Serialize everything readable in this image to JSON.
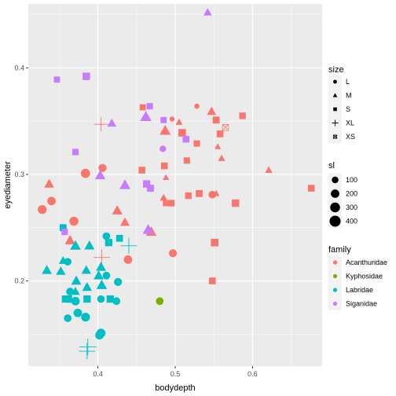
{
  "chart_data": {
    "type": "scatter",
    "xlabel": "bodydepth",
    "ylabel": "eyediameter",
    "xlim": [
      0.31,
      0.69
    ],
    "ylim": [
      0.12,
      0.46
    ],
    "x_ticks": [
      0.4,
      0.5,
      0.6
    ],
    "x_tick_labels": [
      "0.4",
      "0.5",
      "0.6"
    ],
    "y_ticks": [
      0.2,
      0.3,
      0.4
    ],
    "y_tick_labels": [
      "0.2",
      "0.3",
      "0.4"
    ],
    "grid": true,
    "legends": {
      "position": "right",
      "size": {
        "title": "size",
        "entries": [
          {
            "label": "L",
            "shape": "circle"
          },
          {
            "label": "M",
            "shape": "triangle"
          },
          {
            "label": "S",
            "shape": "square"
          },
          {
            "label": "XL",
            "shape": "plus"
          },
          {
            "label": "XS",
            "shape": "square-cross"
          }
        ]
      },
      "sl": {
        "title": "sl",
        "entries": [
          {
            "label": "100",
            "value": 100
          },
          {
            "label": "200",
            "value": 200
          },
          {
            "label": "300",
            "value": 300
          },
          {
            "label": "400",
            "value": 400
          }
        ]
      },
      "family": {
        "title": "family",
        "entries": [
          {
            "label": "Acanthuridae",
            "color": "#F8766D"
          },
          {
            "label": "Kyphosidae",
            "color": "#7CAE00"
          },
          {
            "label": "Labridae",
            "color": "#00BFC4"
          },
          {
            "label": "Siganidae",
            "color": "#C77CFF"
          }
        ]
      }
    },
    "colors": {
      "Acanthuridae": "#F8766D",
      "Kyphosidae": "#7CAE00",
      "Labridae": "#00BFC4",
      "Siganidae": "#C77CFF",
      "panel": "#EBEBEB",
      "grid_major": "#FFFFFF"
    },
    "points": [
      {
        "x": 0.542,
        "y": 0.452,
        "size": "M",
        "family": "Siganidae",
        "sl": 120
      },
      {
        "x": 0.347,
        "y": 0.389,
        "size": "S",
        "family": "Siganidae",
        "sl": 90
      },
      {
        "x": 0.385,
        "y": 0.392,
        "size": "S",
        "family": "Siganidae",
        "sl": 160
      },
      {
        "x": 0.467,
        "y": 0.364,
        "size": "S",
        "family": "Siganidae",
        "sl": 100
      },
      {
        "x": 0.458,
        "y": 0.363,
        "size": "S",
        "family": "Acanthuridae",
        "sl": 90
      },
      {
        "x": 0.528,
        "y": 0.364,
        "size": "L",
        "family": "Acanthuridae",
        "sl": 40
      },
      {
        "x": 0.547,
        "y": 0.359,
        "size": "M",
        "family": "Acanthuridae",
        "sl": 160
      },
      {
        "x": 0.587,
        "y": 0.355,
        "size": "S",
        "family": "Acanthuridae",
        "sl": 110
      },
      {
        "x": 0.462,
        "y": 0.354,
        "size": "M",
        "family": "Siganidae",
        "sl": 280
      },
      {
        "x": 0.485,
        "y": 0.351,
        "size": "S",
        "family": "Siganidae",
        "sl": 90
      },
      {
        "x": 0.496,
        "y": 0.352,
        "size": "L",
        "family": "Acanthuridae",
        "sl": 40
      },
      {
        "x": 0.553,
        "y": 0.351,
        "size": "S",
        "family": "Acanthuridae",
        "sl": 130
      },
      {
        "x": 0.505,
        "y": 0.349,
        "size": "M",
        "family": "Acanthuridae",
        "sl": 70
      },
      {
        "x": 0.404,
        "y": 0.347,
        "size": "XL",
        "family": "Acanthuridae",
        "sl": 220
      },
      {
        "x": 0.418,
        "y": 0.348,
        "size": "M",
        "family": "Siganidae",
        "sl": 150
      },
      {
        "x": 0.565,
        "y": 0.344,
        "size": "XS",
        "family": "Acanthuridae",
        "sl": 100
      },
      {
        "x": 0.487,
        "y": 0.341,
        "size": "M",
        "family": "Acanthuridae",
        "sl": 260
      },
      {
        "x": 0.509,
        "y": 0.339,
        "size": "S",
        "family": "Acanthuridae",
        "sl": 170
      },
      {
        "x": 0.558,
        "y": 0.338,
        "size": "S",
        "family": "Acanthuridae",
        "sl": 120
      },
      {
        "x": 0.514,
        "y": 0.333,
        "size": "S",
        "family": "Siganidae",
        "sl": 120
      },
      {
        "x": 0.528,
        "y": 0.329,
        "size": "S",
        "family": "Acanthuridae",
        "sl": 100
      },
      {
        "x": 0.484,
        "y": 0.324,
        "size": "L",
        "family": "Siganidae",
        "sl": 90
      },
      {
        "x": 0.555,
        "y": 0.326,
        "size": "M",
        "family": "Acanthuridae",
        "sl": 50
      },
      {
        "x": 0.371,
        "y": 0.321,
        "size": "S",
        "family": "Siganidae",
        "sl": 100
      },
      {
        "x": 0.515,
        "y": 0.313,
        "size": "S",
        "family": "Acanthuridae",
        "sl": 100
      },
      {
        "x": 0.56,
        "y": 0.315,
        "size": "M",
        "family": "Acanthuridae",
        "sl": 70
      },
      {
        "x": 0.486,
        "y": 0.308,
        "size": "S",
        "family": "Acanthuridae",
        "sl": 120
      },
      {
        "x": 0.406,
        "y": 0.306,
        "size": "L",
        "family": "Acanthuridae",
        "sl": 180
      },
      {
        "x": 0.621,
        "y": 0.304,
        "size": "M",
        "family": "Acanthuridae",
        "sl": 80
      },
      {
        "x": 0.457,
        "y": 0.304,
        "size": "S",
        "family": "Acanthuridae",
        "sl": 120
      },
      {
        "x": 0.384,
        "y": 0.301,
        "size": "L",
        "family": "Acanthuridae",
        "sl": 250
      },
      {
        "x": 0.403,
        "y": 0.299,
        "size": "M",
        "family": "Siganidae",
        "sl": 220
      },
      {
        "x": 0.488,
        "y": 0.297,
        "size": "M",
        "family": "Acanthuridae",
        "sl": 50
      },
      {
        "x": 0.337,
        "y": 0.291,
        "size": "M",
        "family": "Acanthuridae",
        "sl": 190
      },
      {
        "x": 0.435,
        "y": 0.29,
        "size": "M",
        "family": "Siganidae",
        "sl": 250
      },
      {
        "x": 0.463,
        "y": 0.291,
        "size": "S",
        "family": "Siganidae",
        "sl": 150
      },
      {
        "x": 0.468,
        "y": 0.287,
        "size": "S",
        "family": "Siganidae",
        "sl": 130
      },
      {
        "x": 0.676,
        "y": 0.287,
        "size": "S",
        "family": "Acanthuridae",
        "sl": 120
      },
      {
        "x": 0.531,
        "y": 0.282,
        "size": "S",
        "family": "Acanthuridae",
        "sl": 130
      },
      {
        "x": 0.548,
        "y": 0.281,
        "size": "L",
        "family": "Acanthuridae",
        "sl": 150
      },
      {
        "x": 0.553,
        "y": 0.282,
        "size": "M",
        "family": "Acanthuridae",
        "sl": 60
      },
      {
        "x": 0.517,
        "y": 0.28,
        "size": "S",
        "family": "Acanthuridae",
        "sl": 110
      },
      {
        "x": 0.485,
        "y": 0.278,
        "size": "M",
        "family": "Acanthuridae",
        "sl": 90
      },
      {
        "x": 0.34,
        "y": 0.275,
        "size": "L",
        "family": "Acanthuridae",
        "sl": 200
      },
      {
        "x": 0.578,
        "y": 0.273,
        "size": "S",
        "family": "Acanthuridae",
        "sl": 160
      },
      {
        "x": 0.488,
        "y": 0.273,
        "size": "S",
        "family": "Acanthuridae",
        "sl": 90
      },
      {
        "x": 0.495,
        "y": 0.273,
        "size": "S",
        "family": "Acanthuridae",
        "sl": 110
      },
      {
        "x": 0.328,
        "y": 0.267,
        "size": "L",
        "family": "Acanthuridae",
        "sl": 230
      },
      {
        "x": 0.425,
        "y": 0.266,
        "size": "M",
        "family": "Acanthuridae",
        "sl": 220
      },
      {
        "x": 0.435,
        "y": 0.255,
        "size": "M",
        "family": "Acanthuridae",
        "sl": 170
      },
      {
        "x": 0.369,
        "y": 0.256,
        "size": "L",
        "family": "Acanthuridae",
        "sl": 240
      },
      {
        "x": 0.355,
        "y": 0.25,
        "size": "S",
        "family": "Labridae",
        "sl": 130
      },
      {
        "x": 0.357,
        "y": 0.246,
        "size": "S",
        "family": "Siganidae",
        "sl": 100
      },
      {
        "x": 0.469,
        "y": 0.246,
        "size": "M",
        "family": "Acanthuridae",
        "sl": 230
      },
      {
        "x": 0.465,
        "y": 0.248,
        "size": "M",
        "family": "Siganidae",
        "sl": 250
      },
      {
        "x": 0.411,
        "y": 0.242,
        "size": "L",
        "family": "Labridae",
        "sl": 150
      },
      {
        "x": 0.364,
        "y": 0.238,
        "size": "M",
        "family": "Acanthuridae",
        "sl": 220
      },
      {
        "x": 0.428,
        "y": 0.24,
        "size": "S",
        "family": "Labridae",
        "sl": 120
      },
      {
        "x": 0.414,
        "y": 0.236,
        "size": "S",
        "family": "Labridae",
        "sl": 150
      },
      {
        "x": 0.551,
        "y": 0.236,
        "size": "S",
        "family": "Acanthuridae",
        "sl": 170
      },
      {
        "x": 0.371,
        "y": 0.233,
        "size": "M",
        "family": "Labridae",
        "sl": 230
      },
      {
        "x": 0.389,
        "y": 0.233,
        "size": "M",
        "family": "Labridae",
        "sl": 200
      },
      {
        "x": 0.44,
        "y": 0.233,
        "size": "XL",
        "family": "Labridae",
        "sl": 320
      },
      {
        "x": 0.497,
        "y": 0.226,
        "size": "L",
        "family": "Acanthuridae",
        "sl": 170
      },
      {
        "x": 0.405,
        "y": 0.222,
        "size": "XL",
        "family": "Acanthuridae",
        "sl": 320
      },
      {
        "x": 0.439,
        "y": 0.22,
        "size": "L",
        "family": "Acanthuridae",
        "sl": 200
      },
      {
        "x": 0.355,
        "y": 0.219,
        "size": "M",
        "family": "Labridae",
        "sl": 130
      },
      {
        "x": 0.361,
        "y": 0.218,
        "size": "L",
        "family": "Labridae",
        "sl": 140
      },
      {
        "x": 0.334,
        "y": 0.21,
        "size": "M",
        "family": "Labridae",
        "sl": 200
      },
      {
        "x": 0.352,
        "y": 0.209,
        "size": "M",
        "family": "Labridae",
        "sl": 170
      },
      {
        "x": 0.404,
        "y": 0.213,
        "size": "M",
        "family": "Labridae",
        "sl": 200
      },
      {
        "x": 0.385,
        "y": 0.21,
        "size": "M",
        "family": "Labridae",
        "sl": 180
      },
      {
        "x": 0.401,
        "y": 0.205,
        "size": "M",
        "family": "Labridae",
        "sl": 200
      },
      {
        "x": 0.411,
        "y": 0.205,
        "size": "L",
        "family": "Labridae",
        "sl": 150
      },
      {
        "x": 0.372,
        "y": 0.2,
        "size": "M",
        "family": "Labridae",
        "sl": 200
      },
      {
        "x": 0.426,
        "y": 0.199,
        "size": "L",
        "family": "Labridae",
        "sl": 170
      },
      {
        "x": 0.548,
        "y": 0.2,
        "size": "S",
        "family": "Acanthuridae",
        "sl": 120
      },
      {
        "x": 0.386,
        "y": 0.194,
        "size": "M",
        "family": "Labridae",
        "sl": 190
      },
      {
        "x": 0.405,
        "y": 0.196,
        "size": "M",
        "family": "Labridae",
        "sl": 230
      },
      {
        "x": 0.364,
        "y": 0.19,
        "size": "L",
        "family": "Labridae",
        "sl": 160
      },
      {
        "x": 0.371,
        "y": 0.19,
        "size": "M",
        "family": "Labridae",
        "sl": 140
      },
      {
        "x": 0.358,
        "y": 0.183,
        "size": "S",
        "family": "Labridae",
        "sl": 140
      },
      {
        "x": 0.362,
        "y": 0.183,
        "size": "S",
        "family": "Labridae",
        "sl": 150
      },
      {
        "x": 0.371,
        "y": 0.181,
        "size": "L",
        "family": "Labridae",
        "sl": 200
      },
      {
        "x": 0.386,
        "y": 0.183,
        "size": "S",
        "family": "Labridae",
        "sl": 150
      },
      {
        "x": 0.404,
        "y": 0.183,
        "size": "L",
        "family": "Labridae",
        "sl": 140
      },
      {
        "x": 0.416,
        "y": 0.183,
        "size": "S",
        "family": "Labridae",
        "sl": 150
      },
      {
        "x": 0.424,
        "y": 0.181,
        "size": "L",
        "family": "Labridae",
        "sl": 150
      },
      {
        "x": 0.48,
        "y": 0.181,
        "size": "L",
        "family": "Kyphosidae",
        "sl": 150
      },
      {
        "x": 0.374,
        "y": 0.17,
        "size": "L",
        "family": "Labridae",
        "sl": 200
      },
      {
        "x": 0.361,
        "y": 0.165,
        "size": "L",
        "family": "Labridae",
        "sl": 150
      },
      {
        "x": 0.384,
        "y": 0.166,
        "size": "L",
        "family": "Labridae",
        "sl": 220
      },
      {
        "x": 0.404,
        "y": 0.151,
        "size": "L",
        "family": "Labridae",
        "sl": 240
      },
      {
        "x": 0.402,
        "y": 0.149,
        "size": "L",
        "family": "Labridae",
        "sl": 200
      },
      {
        "x": 0.387,
        "y": 0.138,
        "size": "XL",
        "family": "Labridae",
        "sl": 360
      },
      {
        "x": 0.386,
        "y": 0.134,
        "size": "XL",
        "family": "Labridae",
        "sl": 320
      }
    ]
  }
}
